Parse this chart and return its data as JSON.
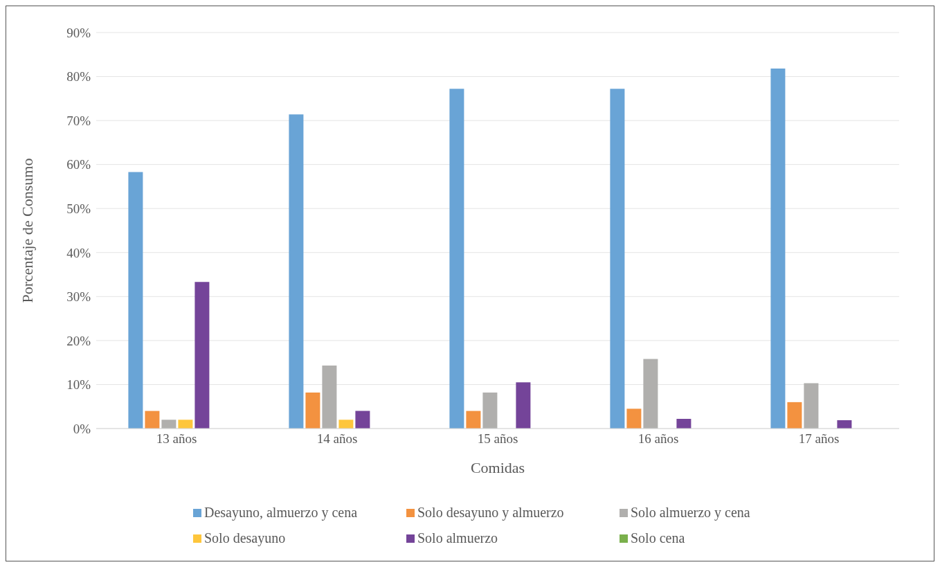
{
  "chart_data": {
    "type": "bar",
    "xlabel": "Comidas",
    "ylabel": "Porcentaje de Consumo",
    "categories": [
      "13 años",
      "14 años",
      "15 años",
      "16 años",
      "17 años"
    ],
    "series": [
      {
        "name": "Desayuno, almuerzo y cena",
        "color": "#69a4d6",
        "values": [
          58.3,
          71.4,
          77.2,
          77.2,
          81.8
        ]
      },
      {
        "name": "Solo desayuno y almuerzo",
        "color": "#f39240",
        "values": [
          4.0,
          8.2,
          4.0,
          4.5,
          6.0
        ]
      },
      {
        "name": "Solo almuerzo y cena",
        "color": "#b0afad",
        "values": [
          2.0,
          14.3,
          8.2,
          15.8,
          10.3
        ]
      },
      {
        "name": "Solo desayuno",
        "color": "#fec63c",
        "values": [
          2.0,
          2.0,
          0,
          0,
          0
        ]
      },
      {
        "name": "Solo almuerzo",
        "color": "#744499",
        "values": [
          33.3,
          4.0,
          10.5,
          2.2,
          1.9
        ]
      },
      {
        "name": "Solo cena",
        "color": "#7ab04c",
        "values": [
          0,
          0,
          0,
          0,
          0
        ]
      }
    ],
    "ylim": [
      0,
      90
    ],
    "yticks": [
      {
        "value": 0,
        "label": "0%"
      },
      {
        "value": 10,
        "label": "10%"
      },
      {
        "value": 20,
        "label": "20%"
      },
      {
        "value": 30,
        "label": "30%"
      },
      {
        "value": 40,
        "label": "40%"
      },
      {
        "value": 50,
        "label": "50%"
      },
      {
        "value": 60,
        "label": "60%"
      },
      {
        "value": 70,
        "label": "70%"
      },
      {
        "value": 80,
        "label": "80%"
      },
      {
        "value": 90,
        "label": "90%"
      }
    ],
    "grid": "y",
    "legend": "bottom"
  }
}
